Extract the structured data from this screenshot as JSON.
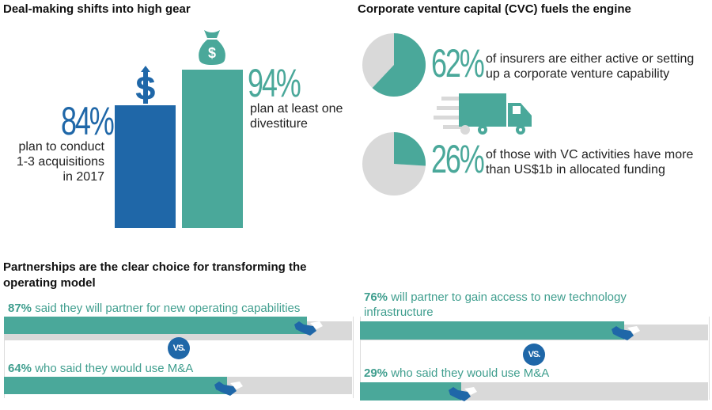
{
  "colors": {
    "teal": "#4aa89a",
    "blue": "#1f67a8",
    "gray": "#d9d9d9"
  },
  "deal": {
    "title": "Deal-making shifts into high gear"
  },
  "cvc": {
    "title": "Corporate venture capital (CVC) fuels the engine"
  },
  "partner": {
    "title_line1": "Partnerships are the clear choice for transforming the",
    "title_line2": "operating model",
    "vs": "VS."
  },
  "chart_data": [
    {
      "type": "bar",
      "title": "Deal-making shifts into high gear",
      "categories": [
        "plan to conduct 1-3 acquisitions in 2017",
        "plan at least one divestiture"
      ],
      "values": [
        84,
        94
      ],
      "labels": [
        "84%",
        "94%"
      ],
      "desc": [
        [
          "plan to conduct",
          "1-3 acquisitions",
          "in 2017"
        ],
        [
          "plan at least one",
          "divestiture"
        ]
      ],
      "icons": [
        "dollar-up-icon",
        "money-bag-icon"
      ]
    },
    {
      "type": "pie",
      "title": "Corporate venture capital (CVC) fuels the engine",
      "items": [
        {
          "value": 62,
          "label": "62%",
          "text_line1": "of insurers are either active or setting",
          "text_line2": "up a corporate venture capability"
        },
        {
          "value": 26,
          "label": "26%",
          "text_line1": "of those with VC activities have more",
          "text_line2": "than US$1b in allocated funding"
        }
      ]
    },
    {
      "type": "bar",
      "orientation": "horizontal",
      "title": "Partnerships are the clear choice for transforming the operating model",
      "groups": [
        {
          "items": [
            {
              "value": 87,
              "pct": "87%",
              "text": " said they will partner for new operating capabilities"
            },
            {
              "value": 64,
              "pct": "64%",
              "text": " who said they would use M&A"
            }
          ]
        },
        {
          "items": [
            {
              "value": 76,
              "pct": "76%",
              "text": " will partner to gain access to new technology infrastructure"
            },
            {
              "value": 29,
              "pct": "29%",
              "text": " who said they would use M&A"
            }
          ]
        }
      ]
    }
  ]
}
